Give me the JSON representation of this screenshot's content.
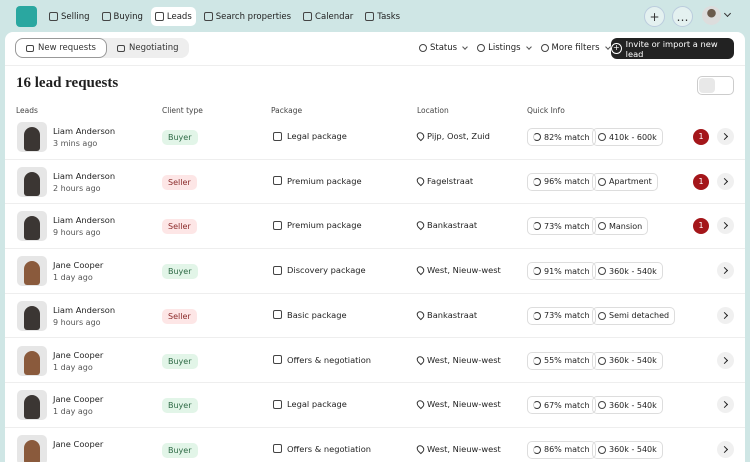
{
  "nav": {
    "items": [
      "Selling",
      "Buying",
      "Leads",
      "Search properties",
      "Calendar",
      "Tasks"
    ],
    "active": 2
  },
  "toolbar": {
    "tabs": [
      "New requests",
      "Negotiating"
    ],
    "active_tab": 0,
    "filters": [
      "Status",
      "Listings",
      "More filters"
    ],
    "action": "Invite or import a new lead"
  },
  "title": "16 lead requests",
  "table": {
    "columns": [
      "Leads",
      "Client type",
      "Package",
      "Location",
      "Quick Info"
    ],
    "rows": [
      {
        "name": "Liam Anderson",
        "time": "3 mins ago",
        "client_type": "Buyer",
        "package": "Legal package",
        "location": "Pijp, Oost, Zuid",
        "match": "82% match",
        "detail": "410k - 600k",
        "badge": "1"
      },
      {
        "name": "Liam Anderson",
        "time": "2 hours ago",
        "client_type": "Seller",
        "package": "Premium package",
        "location": "Fagelstraat",
        "match": "96% match",
        "detail": "Apartment",
        "badge": "1"
      },
      {
        "name": "Liam Anderson",
        "time": "9 hours ago",
        "client_type": "Seller",
        "package": "Premium package",
        "location": "Bankastraat",
        "match": "73% match",
        "detail": "Mansion",
        "badge": "1"
      },
      {
        "name": "Jane Cooper",
        "time": "1 day ago",
        "client_type": "Buyer",
        "package": "Discovery package",
        "location": "West, Nieuw-west",
        "match": "91% match",
        "detail": "360k - 540k"
      },
      {
        "name": "Liam Anderson",
        "time": "9 hours ago",
        "client_type": "Seller",
        "package": "Basic package",
        "location": "Bankastraat",
        "match": "73% match",
        "detail": "Semi detached"
      },
      {
        "name": "Jane Cooper",
        "time": "1 day ago",
        "client_type": "Buyer",
        "package": "Offers & negotiation",
        "location": "West, Nieuw-west",
        "match": "55% match",
        "detail": "360k - 540k"
      },
      {
        "name": "Jane Cooper",
        "time": "1 day ago",
        "client_type": "Buyer",
        "package": "Legal package",
        "location": "West, Nieuw-west",
        "match": "67% match",
        "detail": "360k - 540k"
      },
      {
        "name": "Jane Cooper",
        "client_type": "Buyer",
        "package": "Offers & negotiation",
        "location": "West, Nieuw-west",
        "match": "86% match",
        "detail": "360k - 540k"
      }
    ]
  }
}
